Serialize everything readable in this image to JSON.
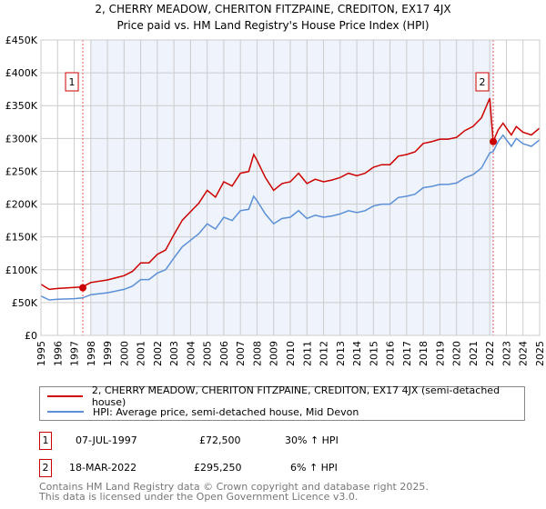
{
  "chart_data": {
    "type": "line",
    "title": "2, CHERRY MEADOW, CHERITON FITZPAINE, CREDITON, EX17 4JX",
    "subtitle": "Price paid vs. HM Land Registry's House Price Index (HPI)",
    "xlim": [
      1995,
      2025
    ],
    "ylim": [
      0,
      450000
    ],
    "grid": true,
    "y_ticks": [
      0,
      50000,
      100000,
      150000,
      200000,
      250000,
      300000,
      350000,
      400000,
      450000
    ],
    "y_tick_labels": [
      "£0",
      "£50K",
      "£100K",
      "£150K",
      "£200K",
      "£250K",
      "£300K",
      "£350K",
      "£400K",
      "£450K"
    ],
    "x_ticks": [
      "1995",
      "1996",
      "1997",
      "1998",
      "1999",
      "2000",
      "2001",
      "2002",
      "2003",
      "2004",
      "2005",
      "2006",
      "2007",
      "2008",
      "2009",
      "2010",
      "2011",
      "2012",
      "2013",
      "2014",
      "2015",
      "2016",
      "2017",
      "2018",
      "2019",
      "2020",
      "2021",
      "2022",
      "2023",
      "2024",
      "2025"
    ],
    "x": [
      1995,
      1995.5,
      1996,
      1997,
      1997.5,
      1998,
      1999,
      2000,
      2000.5,
      2001,
      2001.5,
      2002,
      2002.5,
      2003,
      2003.5,
      2004,
      2004.5,
      2005,
      2005.5,
      2006,
      2006.5,
      2007,
      2007.5,
      2007.8,
      2008,
      2008.5,
      2009,
      2009.5,
      2010,
      2010.5,
      2011,
      2011.5,
      2012,
      2012.5,
      2013,
      2013.5,
      2014,
      2014.5,
      2015,
      2015.5,
      2016,
      2016.5,
      2017,
      2017.5,
      2018,
      2018.5,
      2019,
      2019.5,
      2020,
      2020.5,
      2021,
      2021.5,
      2022,
      2022.2,
      2022.5,
      2022.8,
      2023,
      2023.3,
      2023.6,
      2024,
      2024.5,
      2025
    ],
    "series": [
      {
        "name": "2, CHERRY MEADOW, CHERITON FITZPAINE, CREDITON, EX17 4JX (semi-detached house)",
        "color": "#cc0000",
        "values": [
          78,
          70,
          71.5,
          73,
          74,
          80.6,
          84.5,
          91,
          97.5,
          110.5,
          110.5,
          123.5,
          130,
          153.4,
          175.5,
          188.5,
          201.5,
          221,
          210.6,
          234,
          227.5,
          247,
          249.6,
          275.6,
          266.5,
          240.5,
          221,
          231.4,
          234,
          247,
          231.4,
          237.9,
          234,
          236.6,
          240.5,
          247,
          243.1,
          247,
          256.1,
          260,
          260,
          273,
          275.6,
          279.5,
          292.5,
          295.1,
          299,
          299,
          301.6,
          312,
          318.5,
          331.5,
          361.4,
          295.25,
          312.7,
          323.3,
          315.9,
          305.3,
          318,
          309.5,
          305.3,
          315.9
        ]
      },
      {
        "name": "HPI: Average price, semi-detached house, Mid Devon",
        "color": "#5b8fd6",
        "values": [
          60,
          54,
          55,
          56,
          57,
          62,
          65,
          70,
          75,
          85,
          85,
          95,
          100,
          118,
          135,
          145,
          155,
          170,
          162,
          180,
          175,
          190,
          192,
          212,
          205,
          185,
          170,
          178,
          180,
          190,
          178,
          183,
          180,
          182,
          185,
          190,
          187,
          190,
          197,
          200,
          200,
          210,
          212,
          215,
          225,
          227,
          230,
          230,
          232,
          240,
          245,
          255,
          278,
          280,
          295,
          305,
          298,
          288,
          300,
          292,
          288,
          298
        ]
      }
    ],
    "y_unit": "thousands GBP",
    "sales": [
      {
        "label": "1",
        "x": 1997.52,
        "value": 72.5
      },
      {
        "label": "2",
        "x": 2022.21,
        "value": 295.25
      }
    ]
  },
  "legend": {
    "property": "2, CHERRY MEADOW, CHERITON FITZPAINE, CREDITON, EX17 4JX (semi-detached house)",
    "hpi": "HPI: Average price, semi-detached house, Mid Devon"
  },
  "transactions": [
    {
      "num": "1",
      "date": "07-JUL-1997",
      "price": "£72,500",
      "hpi": "30% ↑ HPI"
    },
    {
      "num": "2",
      "date": "18-MAR-2022",
      "price": "£295,250",
      "hpi": "6% ↑ HPI"
    }
  ],
  "footer": {
    "line1": "Contains HM Land Registry data © Crown copyright and database right 2025.",
    "line2": "This data is licensed under the Open Government Licence v3.0."
  }
}
